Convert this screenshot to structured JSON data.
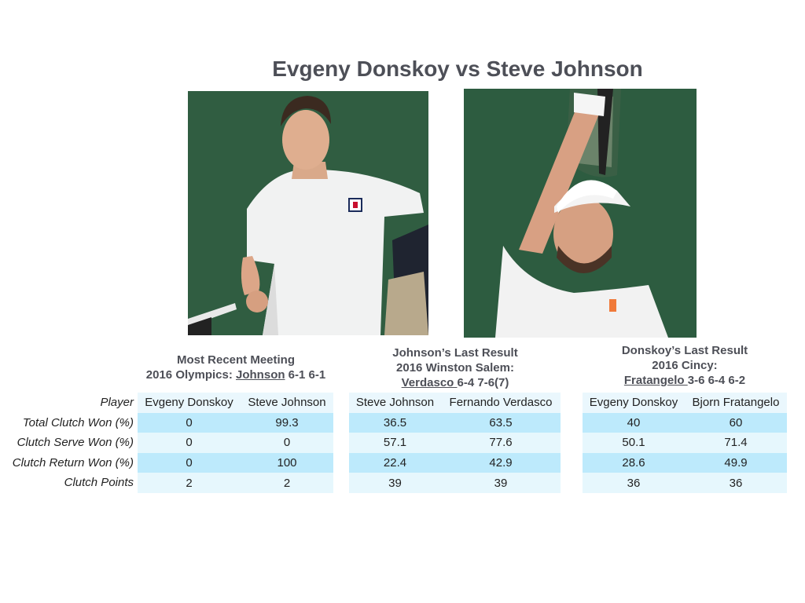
{
  "title": "Evgeny Donskoy vs Steve Johnson",
  "photos": {
    "left": "Evgeny Donskoy photo",
    "right": "Steve Johnson photo"
  },
  "row_labels": {
    "player": "Player",
    "total": "Total Clutch Won (%)",
    "serve": "Clutch Serve Won (%)",
    "return": "Clutch Return Won (%)",
    "points": "Clutch Points"
  },
  "sections": [
    {
      "heading_line1": "Most Recent Meeting",
      "heading_line2_prefix": "2016 Olympics: ",
      "heading_winner": "Johnson",
      "heading_score": " 6-1 6-1",
      "players": [
        "Evgeny Donskoy",
        "Steve Johnson"
      ],
      "total": [
        "0",
        "99.3"
      ],
      "serve": [
        "0",
        "0"
      ],
      "return": [
        "0",
        "100"
      ],
      "points": [
        "2",
        "2"
      ]
    },
    {
      "heading_line1": "Johnson’s Last Result",
      "heading_line2": "2016 Winston Salem:",
      "heading_winner": "Verdasco ",
      "heading_score": "6-4 7-6(7)",
      "players": [
        "Steve Johnson",
        "Fernando Verdasco"
      ],
      "total": [
        "36.5",
        "63.5"
      ],
      "serve": [
        "57.1",
        "77.6"
      ],
      "return": [
        "22.4",
        "42.9"
      ],
      "points": [
        "39",
        "39"
      ]
    },
    {
      "heading_line1": "Donskoy’s Last Result",
      "heading_line2": "2016 Cincy:",
      "heading_winner": "Fratangelo ",
      "heading_score": "3-6 6-4 6-2",
      "players": [
        "Evgeny Donskoy",
        "Bjorn Fratangelo"
      ],
      "total": [
        "40",
        "60"
      ],
      "serve": [
        "50.1",
        "71.4"
      ],
      "return": [
        "28.6",
        "49.9"
      ],
      "points": [
        "36",
        "36"
      ]
    }
  ]
}
